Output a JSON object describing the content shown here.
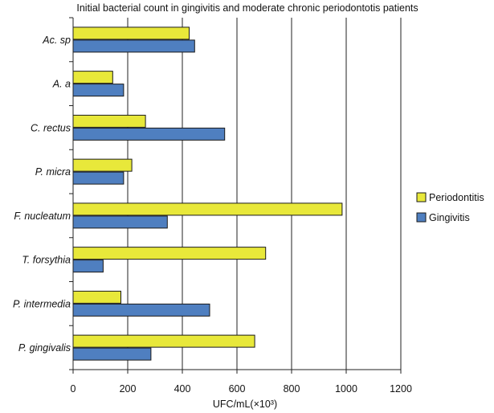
{
  "chart_data": {
    "type": "bar",
    "orientation": "horizontal",
    "title": "Initial bacterial count in gingivitis and moderate chronic periodontotis patients",
    "xlabel": "UFC/mL(×10³)",
    "ylabel": "",
    "xlim": [
      0,
      1200
    ],
    "xticks": [
      0,
      200,
      400,
      600,
      800,
      1000,
      1200
    ],
    "grid": "vertical",
    "legend_position": "right",
    "categories": [
      "Ac. sp",
      "A. a",
      "C. rectus",
      "P. micra",
      "F. nucleatum",
      "T. forsythia",
      "P. intermedia",
      "P. gingivalis"
    ],
    "series": [
      {
        "name": "Periodontitis",
        "color": "#e8e83a",
        "values": [
          425,
          145,
          265,
          215,
          985,
          705,
          175,
          665
        ]
      },
      {
        "name": "Gingivitis",
        "color": "#4f7fc0",
        "values": [
          445,
          185,
          555,
          185,
          345,
          110,
          500,
          285
        ]
      }
    ]
  }
}
